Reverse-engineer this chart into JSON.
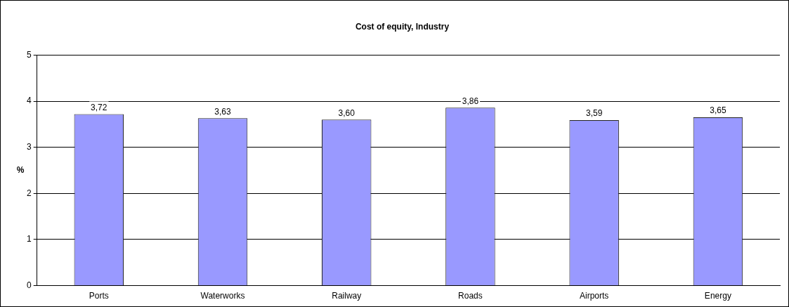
{
  "chart_data": {
    "type": "bar",
    "title": "Cost of equity, Industry",
    "ylabel": "%",
    "categories": [
      "Ports",
      "Waterworks",
      "Railway",
      "Roads",
      "Airports",
      "Energy"
    ],
    "values": [
      3.72,
      3.63,
      3.6,
      3.86,
      3.59,
      3.65
    ],
    "value_labels": [
      "3,72",
      "3,63",
      "3,60",
      "3,86",
      "3,59",
      "3,65"
    ],
    "color": "#9999ff",
    "ylim": [
      0,
      5
    ],
    "yticks": [
      0,
      1,
      2,
      3,
      4,
      5
    ],
    "grid": "y"
  }
}
